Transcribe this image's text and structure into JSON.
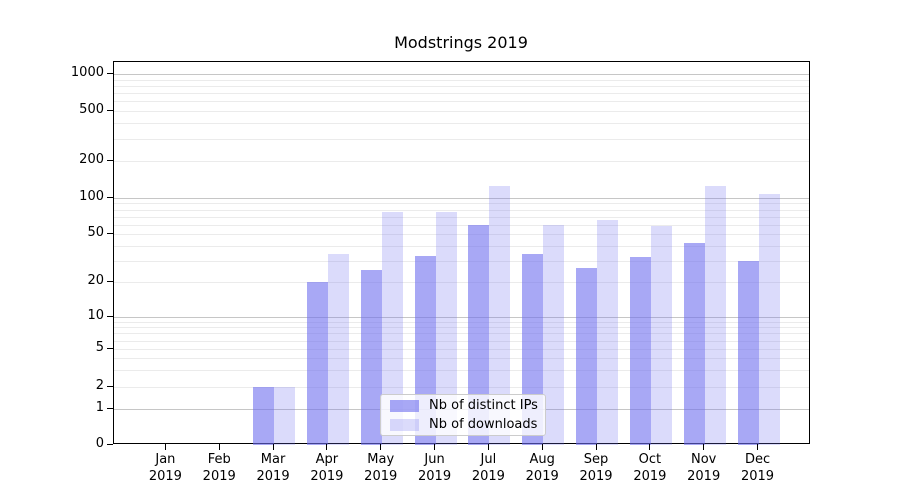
{
  "title": "Modstrings 2019",
  "chart_data": {
    "type": "bar",
    "title": "Modstrings 2019",
    "categories": [
      "Jan 2019",
      "Feb 2019",
      "Mar 2019",
      "Apr 2019",
      "May 2019",
      "Jun 2019",
      "Jul 2019",
      "Aug 2019",
      "Sep 2019",
      "Oct 2019",
      "Nov 2019",
      "Dec 2019"
    ],
    "series": [
      {
        "name": "Nb of distinct IPs",
        "values": [
          0,
          0,
          2,
          20,
          25,
          33,
          60,
          34,
          26,
          32,
          42,
          30
        ],
        "color": "#6e6eee",
        "alpha": 0.6
      },
      {
        "name": "Nb of downloads",
        "values": [
          0,
          0,
          2,
          34,
          76,
          76,
          125,
          59,
          65,
          58,
          125,
          108
        ],
        "color": "#6e6eee",
        "alpha": 0.25
      }
    ],
    "xlabel": "",
    "ylabel": "",
    "yscale": "symlog",
    "y_ticks": [
      0,
      1,
      2,
      5,
      10,
      20,
      50,
      100,
      200,
      500,
      1000
    ],
    "ylim": [
      0,
      1260
    ],
    "grid": true,
    "legend_position": "lower center"
  },
  "colors": {
    "bar_base": "#6e6eee",
    "grid_minor": "#ebebeb",
    "grid_major": "#c6c6c6",
    "spine": "#000000",
    "legend_border": "#cccccc",
    "text": "#000000"
  }
}
